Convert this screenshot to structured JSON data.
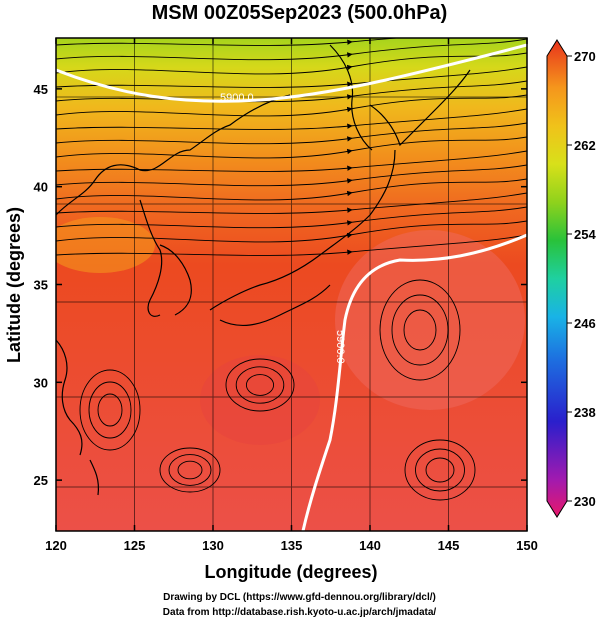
{
  "title": "MSM 00Z05Sep2023 (500.0hPa)",
  "x_axis": {
    "label": "Longitude (degrees)",
    "ticks": [
      "120",
      "125",
      "130",
      "135",
      "140",
      "145",
      "150"
    ],
    "range": [
      120,
      150
    ]
  },
  "y_axis": {
    "label": "Latitude  (degrees)",
    "ticks": [
      "25",
      "30",
      "35",
      "40",
      "45"
    ],
    "range": [
      22.4,
      47.6
    ]
  },
  "colorbar": {
    "min": 230,
    "max": 270,
    "ticks": [
      "270",
      "262",
      "254",
      "246",
      "238",
      "230"
    ],
    "colors": [
      "#e8186a",
      "#8a1ab0",
      "#2a1fcc",
      "#1d6fe0",
      "#19b3e6",
      "#1fd0a0",
      "#29c23a",
      "#8fd21c",
      "#d8e01a",
      "#f0c21a",
      "#f5961c",
      "#f2641c",
      "#e8331c"
    ]
  },
  "contours": [
    {
      "label": "5900.0"
    },
    {
      "label": "5900.0"
    }
  ],
  "credits": {
    "line1": "Drawing by DCL (https://www.gfd-dennou.org/library/dcl/)",
    "line2": "Data from http://database.rish.kyoto-u.ac.jp/arch/jmadata/"
  }
}
